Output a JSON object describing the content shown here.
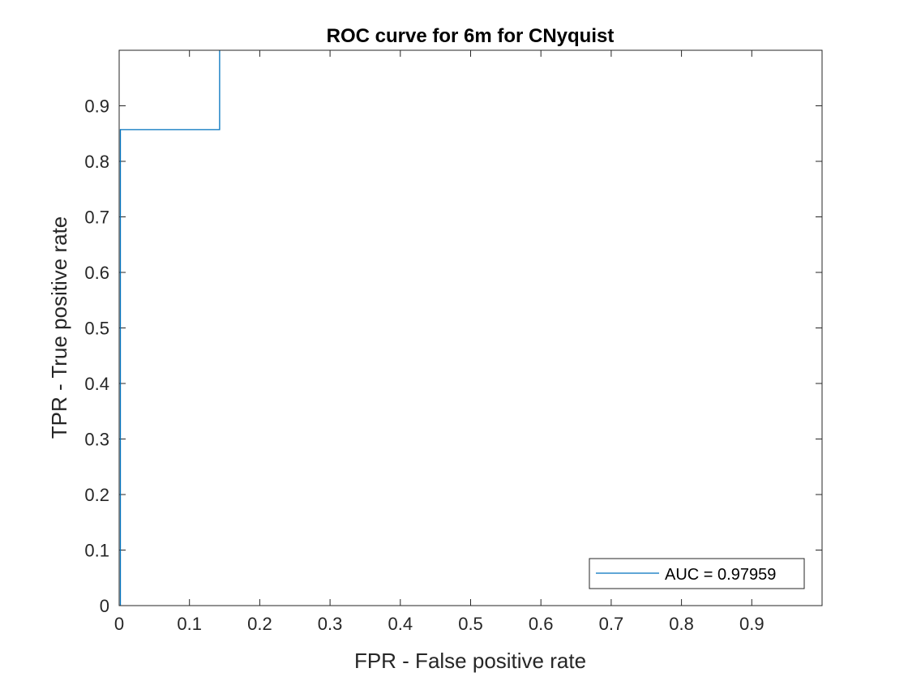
{
  "chart_data": {
    "type": "line",
    "title": "ROC curve for 6m for CNyquist",
    "xlabel": "FPR - False positive rate",
    "ylabel": "TPR - True positive rate",
    "xlim": [
      0,
      1
    ],
    "ylim": [
      0,
      1
    ],
    "xticks": [
      0,
      0.1,
      0.2,
      0.3,
      0.4,
      0.5,
      0.6,
      0.7,
      0.8,
      0.9
    ],
    "xtick_labels": [
      "0",
      "0.1",
      "0.2",
      "0.3",
      "0.4",
      "0.5",
      "0.6",
      "0.7",
      "0.8",
      "0.9"
    ],
    "yticks": [
      0,
      0.1,
      0.2,
      0.3,
      0.4,
      0.5,
      0.6,
      0.7,
      0.8,
      0.9
    ],
    "ytick_labels": [
      "0",
      "0.1",
      "0.2",
      "0.3",
      "0.4",
      "0.5",
      "0.6",
      "0.7",
      "0.8",
      "0.9"
    ],
    "grid": false,
    "legend_position": "bottom-right",
    "series": [
      {
        "name": "AUC = 0.97959",
        "color": "#0072BD",
        "x": [
          0,
          0,
          0.1429,
          0.1429
        ],
        "y": [
          0,
          0.8571,
          0.8571,
          1.0
        ]
      }
    ]
  }
}
